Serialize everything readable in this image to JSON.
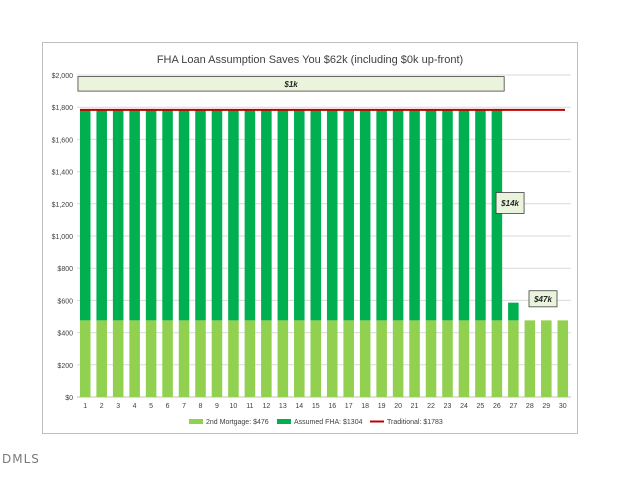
{
  "chart_data": {
    "type": "bar",
    "title": "FHA Loan Assumption Saves You $62k (including $0k up-front)",
    "xlabel": "",
    "ylabel": "",
    "ylim": [
      0,
      2000
    ],
    "y_ticks": [
      "$0",
      "$200",
      "$400",
      "$600",
      "$800",
      "$1,000",
      "$1,200",
      "$1,400",
      "$1,600",
      "$1,800",
      "$2,000"
    ],
    "y_tick_values": [
      0,
      200,
      400,
      600,
      800,
      1000,
      1200,
      1400,
      1600,
      1800,
      2000
    ],
    "categories": [
      "1",
      "2",
      "3",
      "4",
      "5",
      "6",
      "7",
      "8",
      "9",
      "10",
      "11",
      "12",
      "13",
      "14",
      "15",
      "16",
      "17",
      "18",
      "19",
      "20",
      "21",
      "22",
      "23",
      "24",
      "25",
      "26",
      "27",
      "28",
      "29",
      "30"
    ],
    "stacked": true,
    "series": [
      {
        "name": "2nd Mortgage: $476",
        "color": "#92d050",
        "kind": "bar",
        "values": [
          476,
          476,
          476,
          476,
          476,
          476,
          476,
          476,
          476,
          476,
          476,
          476,
          476,
          476,
          476,
          476,
          476,
          476,
          476,
          476,
          476,
          476,
          476,
          476,
          476,
          476,
          476,
          476,
          476,
          476
        ]
      },
      {
        "name": "Assumed FHA: $1304",
        "color": "#00b050",
        "kind": "bar",
        "values": [
          1304,
          1304,
          1304,
          1304,
          1304,
          1304,
          1304,
          1304,
          1304,
          1304,
          1304,
          1304,
          1304,
          1304,
          1304,
          1304,
          1304,
          1304,
          1304,
          1304,
          1304,
          1304,
          1304,
          1304,
          1304,
          1304,
          110,
          0,
          0,
          0
        ]
      },
      {
        "name": "Traditional: $1783",
        "color": "#c00000",
        "kind": "line",
        "value": 1783
      }
    ],
    "annotations": [
      {
        "text": "$1k",
        "from_category": 1,
        "to_category": 26,
        "y_top": 1990,
        "y_bottom": 1900
      },
      {
        "text": "$14k",
        "category": 26.8,
        "y_top": 1270,
        "y_bottom": 1140
      },
      {
        "text": "$47k",
        "category": 28.8,
        "y_top": 660,
        "y_bottom": 560
      }
    ],
    "legend_position": "bottom",
    "grid": true
  },
  "watermark": "DMLS"
}
